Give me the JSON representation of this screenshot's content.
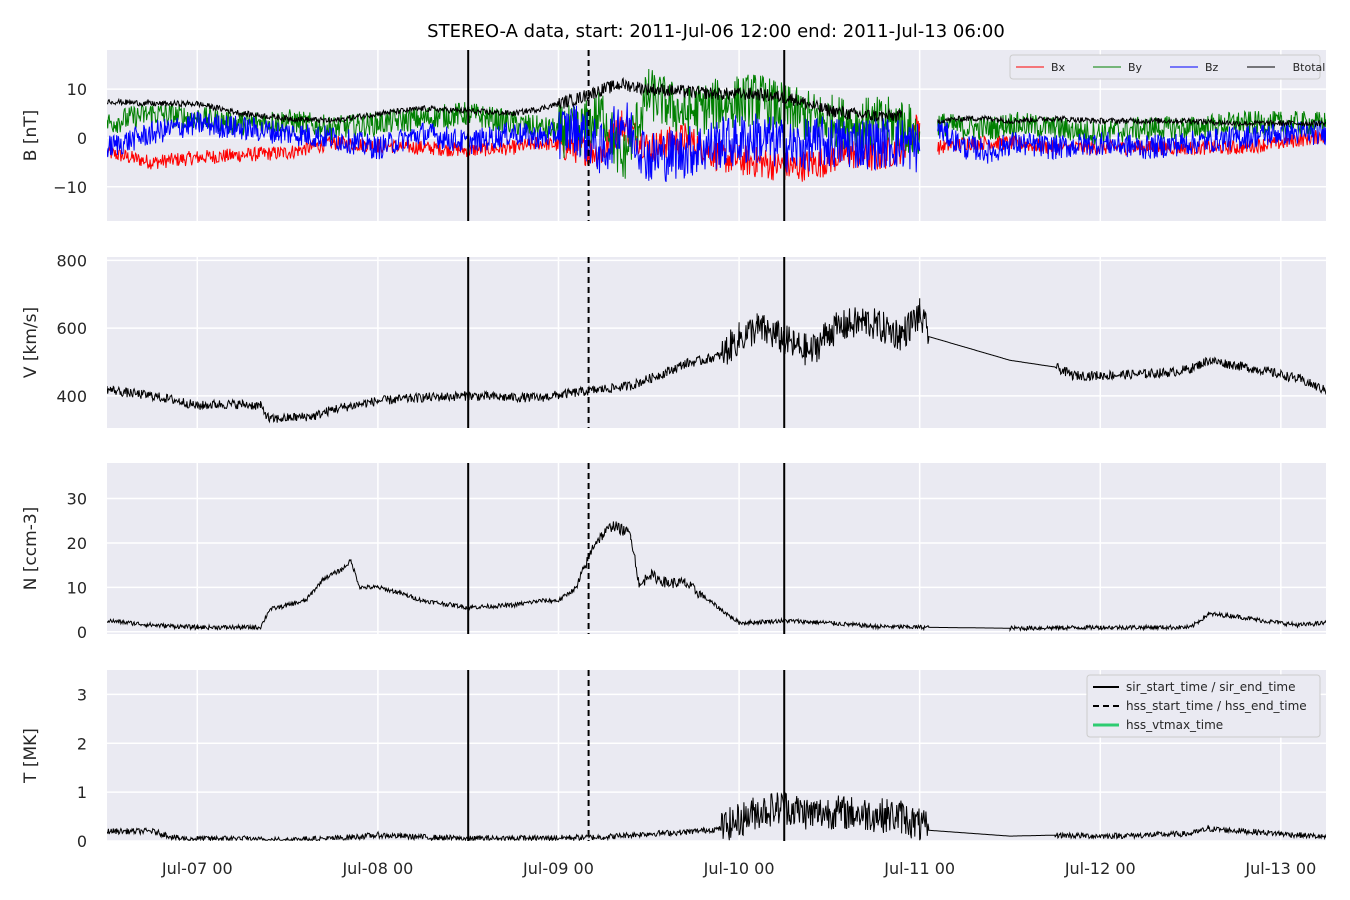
{
  "chart_data": [
    {
      "type": "line",
      "title": "STEREO-A data, start: 2011-Jul-06 12:00  end: 2011-Jul-13 06:00",
      "ylabel": "B [nT]",
      "ylim": [
        -17,
        18
      ],
      "yticks": [
        -10,
        0,
        10
      ],
      "xlim": [
        "2011-07-06 12:00",
        "2011-07-13 06:00"
      ],
      "xticks": [
        "Jul-07 00",
        "Jul-08 00",
        "Jul-09 00",
        "Jul-10 00",
        "Jul-11 00",
        "Jul-12 00",
        "Jul-13 00"
      ],
      "grid": true,
      "legend_position": "top-right",
      "series": [
        {
          "name": "Bx",
          "color": "#ff0000",
          "values": [
            [
              0.0,
              -3
            ],
            [
              0.25,
              -5
            ],
            [
              0.5,
              -4
            ],
            [
              0.75,
              -3.5
            ],
            [
              1.0,
              -3
            ],
            [
              1.25,
              -1
            ],
            [
              1.5,
              -1.5
            ],
            [
              1.75,
              -2
            ],
            [
              2.0,
              -2.5
            ],
            [
              2.25,
              -2
            ],
            [
              2.4,
              -1
            ],
            [
              2.6,
              -2
            ],
            [
              2.75,
              -3
            ],
            [
              2.85,
              3
            ],
            [
              3.0,
              -2
            ],
            [
              3.2,
              0
            ],
            [
              3.4,
              -4
            ],
            [
              3.6,
              -5
            ],
            [
              3.8,
              -6
            ],
            [
              3.95,
              -5
            ],
            [
              4.1,
              -3
            ],
            [
              4.25,
              -4
            ],
            [
              4.4,
              -2
            ],
            [
              4.5,
              3
            ],
            [
              4.6,
              -2
            ],
            [
              4.75,
              -1
            ],
            [
              4.8,
              -1
            ],
            [
              4.9,
              -1
            ],
            [
              5.0,
              -1
            ],
            [
              5.25,
              -2
            ],
            [
              5.5,
              -2
            ],
            [
              5.75,
              -2
            ],
            [
              6.0,
              -2
            ],
            [
              6.25,
              -2
            ],
            [
              6.5,
              -1
            ],
            [
              6.75,
              0.5
            ]
          ]
        },
        {
          "name": "By",
          "color": "#008000",
          "values": [
            [
              0.0,
              3
            ],
            [
              0.25,
              5
            ],
            [
              0.5,
              4
            ],
            [
              0.75,
              3
            ],
            [
              1.0,
              3.5
            ],
            [
              1.25,
              2
            ],
            [
              1.5,
              3
            ],
            [
              1.75,
              4
            ],
            [
              2.0,
              5
            ],
            [
              2.25,
              3
            ],
            [
              2.4,
              2
            ],
            [
              2.6,
              1
            ],
            [
              2.75,
              5
            ],
            [
              2.85,
              -5
            ],
            [
              3.0,
              9
            ],
            [
              3.2,
              5
            ],
            [
              3.4,
              7
            ],
            [
              3.6,
              8
            ],
            [
              3.8,
              5
            ],
            [
              3.95,
              4
            ],
            [
              4.1,
              3
            ],
            [
              4.25,
              3
            ],
            [
              4.4,
              3
            ],
            [
              4.5,
              0
            ],
            [
              4.6,
              3
            ],
            [
              4.75,
              2
            ],
            [
              4.8,
              2
            ],
            [
              4.9,
              2
            ],
            [
              5.0,
              3
            ],
            [
              5.25,
              2
            ],
            [
              5.5,
              1
            ],
            [
              5.75,
              2
            ],
            [
              6.0,
              2
            ],
            [
              6.25,
              3
            ],
            [
              6.5,
              3
            ],
            [
              6.75,
              3
            ]
          ]
        },
        {
          "name": "Bz",
          "color": "#0000ff",
          "values": [
            [
              0.0,
              -2
            ],
            [
              0.25,
              1
            ],
            [
              0.5,
              3
            ],
            [
              0.75,
              2
            ],
            [
              1.0,
              1
            ],
            [
              1.25,
              0
            ],
            [
              1.5,
              -2
            ],
            [
              1.75,
              1
            ],
            [
              2.0,
              -1
            ],
            [
              2.25,
              1
            ],
            [
              2.4,
              0
            ],
            [
              2.6,
              2
            ],
            [
              2.75,
              -3
            ],
            [
              2.85,
              4
            ],
            [
              3.0,
              -4
            ],
            [
              3.2,
              -3
            ],
            [
              3.4,
              -1
            ],
            [
              3.6,
              0
            ],
            [
              3.8,
              -2
            ],
            [
              3.95,
              -1
            ],
            [
              4.1,
              -1
            ],
            [
              4.25,
              -1
            ],
            [
              4.4,
              -1
            ],
            [
              4.5,
              -2
            ],
            [
              4.6,
              2
            ],
            [
              4.75,
              -2
            ],
            [
              4.8,
              -2
            ],
            [
              4.9,
              -3
            ],
            [
              5.0,
              -1
            ],
            [
              5.25,
              -2
            ],
            [
              5.5,
              -1
            ],
            [
              5.75,
              -2
            ],
            [
              6.0,
              -1
            ],
            [
              6.25,
              0
            ],
            [
              6.5,
              1
            ],
            [
              6.75,
              1
            ]
          ]
        },
        {
          "name": "Btotal",
          "color": "#000000",
          "values": [
            [
              0.0,
              7.5
            ],
            [
              0.25,
              7
            ],
            [
              0.5,
              7
            ],
            [
              0.75,
              5
            ],
            [
              1.0,
              4
            ],
            [
              1.25,
              3.5
            ],
            [
              1.5,
              5
            ],
            [
              1.75,
              6
            ],
            [
              2.0,
              5.5
            ],
            [
              2.25,
              5
            ],
            [
              2.4,
              6
            ],
            [
              2.6,
              8
            ],
            [
              2.75,
              10
            ],
            [
              2.85,
              11
            ],
            [
              3.0,
              10
            ],
            [
              3.2,
              9.5
            ],
            [
              3.4,
              9
            ],
            [
              3.6,
              9
            ],
            [
              3.8,
              8
            ],
            [
              3.95,
              6
            ],
            [
              4.1,
              5
            ],
            [
              4.25,
              4.5
            ],
            [
              4.4,
              4.5
            ],
            [
              4.5,
              null
            ],
            [
              4.6,
              3.5
            ],
            [
              4.75,
              4
            ],
            [
              4.8,
              4
            ],
            [
              4.9,
              4
            ],
            [
              5.0,
              3.5
            ],
            [
              5.25,
              4
            ],
            [
              5.5,
              3.5
            ],
            [
              5.75,
              3.5
            ],
            [
              6.0,
              3.5
            ],
            [
              6.25,
              3
            ],
            [
              6.5,
              3
            ],
            [
              6.75,
              3
            ]
          ]
        }
      ]
    },
    {
      "type": "line",
      "ylabel": "V [km/s]",
      "ylim": [
        305,
        810
      ],
      "yticks": [
        400,
        600,
        800
      ],
      "grid": true,
      "series": [
        {
          "color": "#000000",
          "values": [
            [
              0.0,
              420
            ],
            [
              0.1,
              410
            ],
            [
              0.25,
              400
            ],
            [
              0.4,
              385
            ],
            [
              0.5,
              370
            ],
            [
              0.6,
              375
            ],
            [
              0.75,
              375
            ],
            [
              0.85,
              370
            ],
            [
              0.9,
              330
            ],
            [
              1.0,
              335
            ],
            [
              1.15,
              340
            ],
            [
              1.25,
              360
            ],
            [
              1.5,
              385
            ],
            [
              1.75,
              395
            ],
            [
              2.0,
              400
            ],
            [
              2.25,
              395
            ],
            [
              2.4,
              395
            ],
            [
              2.6,
              410
            ],
            [
              2.75,
              420
            ],
            [
              2.9,
              430
            ],
            [
              3.0,
              450
            ],
            [
              3.1,
              470
            ],
            [
              3.2,
              495
            ],
            [
              3.3,
              505
            ],
            [
              3.4,
              520
            ],
            [
              3.5,
              570
            ],
            [
              3.6,
              600
            ],
            [
              3.7,
              580
            ],
            [
              3.8,
              550
            ],
            [
              3.9,
              530
            ],
            [
              4.0,
              590
            ],
            [
              4.1,
              610
            ],
            [
              4.2,
              620
            ],
            [
              4.3,
              600
            ],
            [
              4.4,
              580
            ],
            [
              4.5,
              640
            ],
            [
              4.55,
              575
            ],
            [
              5.0,
              505
            ],
            [
              5.25,
              485
            ],
            [
              5.35,
              460
            ],
            [
              5.5,
              460
            ],
            [
              5.75,
              465
            ],
            [
              5.9,
              470
            ],
            [
              6.0,
              480
            ],
            [
              6.1,
              505
            ],
            [
              6.25,
              490
            ],
            [
              6.4,
              475
            ],
            [
              6.6,
              450
            ],
            [
              6.75,
              415
            ]
          ]
        }
      ]
    },
    {
      "type": "line",
      "ylabel": "N [ccm-3]",
      "ylim": [
        -0.5,
        38
      ],
      "yticks": [
        0,
        10,
        20,
        30
      ],
      "grid": true,
      "series": [
        {
          "color": "#000000",
          "values": [
            [
              0.0,
              2.5
            ],
            [
              0.25,
              1.5
            ],
            [
              0.5,
              1
            ],
            [
              0.75,
              1
            ],
            [
              0.85,
              1
            ],
            [
              0.9,
              5
            ],
            [
              1.0,
              6
            ],
            [
              1.1,
              7
            ],
            [
              1.2,
              12
            ],
            [
              1.3,
              14
            ],
            [
              1.35,
              16
            ],
            [
              1.4,
              10
            ],
            [
              1.5,
              10
            ],
            [
              1.6,
              9
            ],
            [
              1.75,
              7
            ],
            [
              2.0,
              5.5
            ],
            [
              2.25,
              6
            ],
            [
              2.4,
              7
            ],
            [
              2.5,
              7
            ],
            [
              2.6,
              10
            ],
            [
              2.7,
              20
            ],
            [
              2.8,
              24
            ],
            [
              2.9,
              22
            ],
            [
              2.95,
              10
            ],
            [
              3.0,
              13
            ],
            [
              3.1,
              11
            ],
            [
              3.2,
              11
            ],
            [
              3.3,
              8
            ],
            [
              3.4,
              5
            ],
            [
              3.5,
              2
            ],
            [
              3.75,
              2.5
            ],
            [
              4.0,
              2
            ],
            [
              4.25,
              1.2
            ],
            [
              4.55,
              1
            ],
            [
              5.0,
              0.8
            ],
            [
              5.5,
              1
            ],
            [
              5.75,
              1
            ],
            [
              6.0,
              1
            ],
            [
              6.1,
              4
            ],
            [
              6.25,
              3.5
            ],
            [
              6.4,
              2.5
            ],
            [
              6.6,
              1.5
            ],
            [
              6.75,
              2
            ]
          ]
        }
      ]
    },
    {
      "type": "line",
      "ylabel": "T [MK]",
      "ylim": [
        0,
        3.5
      ],
      "yticks": [
        0,
        1,
        2,
        3
      ],
      "grid": true,
      "legend_position": "top-right",
      "legend": [
        "sir_start_time / sir_end_time",
        "hss_start_time / hss_end_time",
        "hss_vtmax_time"
      ],
      "series": [
        {
          "color": "#000000",
          "values": [
            [
              0.0,
              0.2
            ],
            [
              0.25,
              0.2
            ],
            [
              0.4,
              0.05
            ],
            [
              0.75,
              0.05
            ],
            [
              0.9,
              0.02
            ],
            [
              1.25,
              0.05
            ],
            [
              1.5,
              0.12
            ],
            [
              1.75,
              0.08
            ],
            [
              2.0,
              0.05
            ],
            [
              2.4,
              0.06
            ],
            [
              2.75,
              0.08
            ],
            [
              3.0,
              0.15
            ],
            [
              3.2,
              0.18
            ],
            [
              3.4,
              0.25
            ],
            [
              3.6,
              0.6
            ],
            [
              3.75,
              0.7
            ],
            [
              3.9,
              0.55
            ],
            [
              4.0,
              0.6
            ],
            [
              4.2,
              0.55
            ],
            [
              4.4,
              0.5
            ],
            [
              4.55,
              0.22
            ],
            [
              5.0,
              0.1
            ],
            [
              5.25,
              0.12
            ],
            [
              5.5,
              0.1
            ],
            [
              5.75,
              0.12
            ],
            [
              6.0,
              0.15
            ],
            [
              6.1,
              0.25
            ],
            [
              6.3,
              0.2
            ],
            [
              6.5,
              0.15
            ],
            [
              6.75,
              0.08
            ]
          ]
        }
      ]
    }
  ],
  "events": {
    "sir_start": "2011-07-08 12:00",
    "hss_start": "2011-07-09 04:00",
    "sir_end": "2011-07-10 06:00"
  },
  "colors": {
    "sir": "#000000",
    "hss": "#000000",
    "hss_vtmax": "#2ecc71",
    "axes_bg": "#eaeaf2",
    "grid": "#ffffff"
  }
}
